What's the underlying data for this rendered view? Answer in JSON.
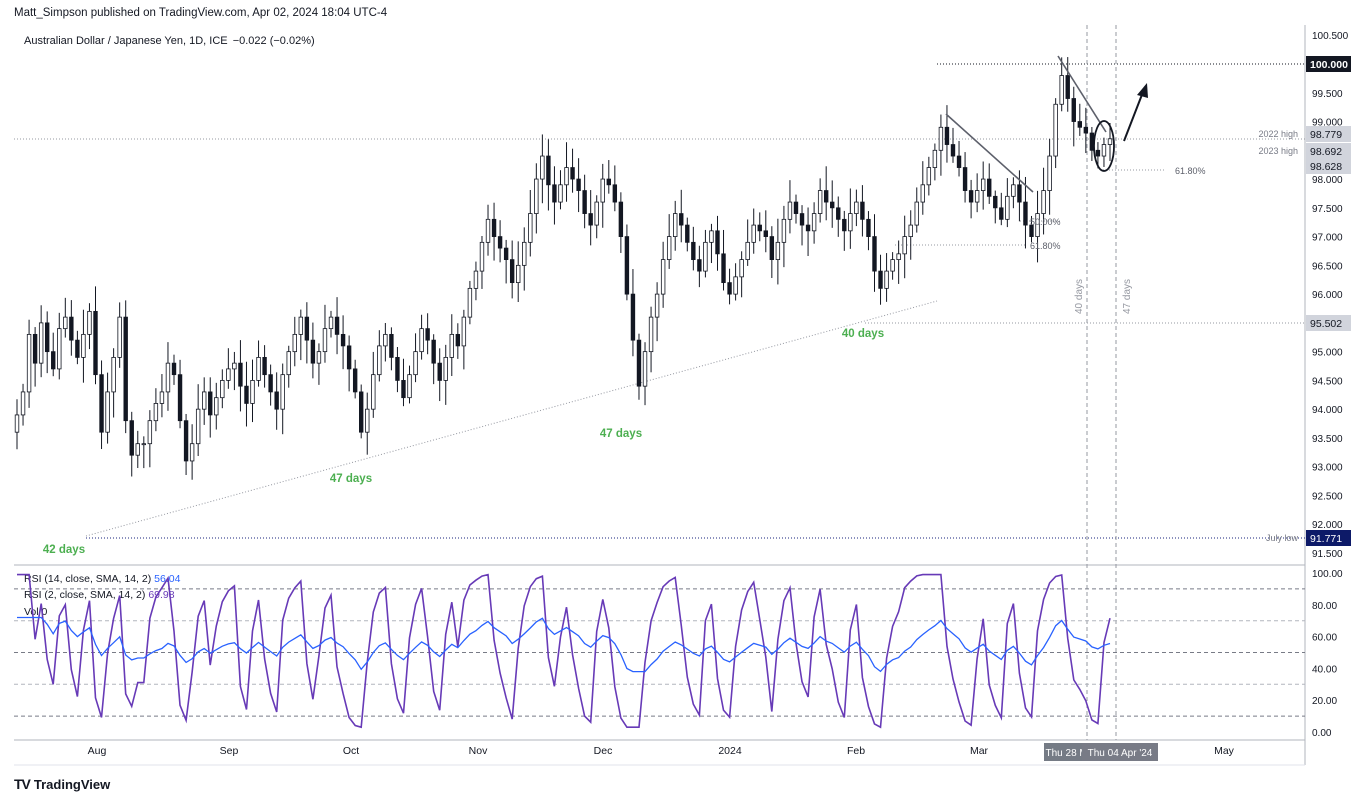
{
  "header": {
    "publisher": "Matt_Simpson published on TradingView.com, Apr 02, 2024 18:04 UTC-4"
  },
  "legend": {
    "symbol": "Australian Dollar / Japanese Yen, 1D, ICE",
    "change": "−0.022 (−0.02%)"
  },
  "rsi_panel": {
    "rsi1_label": "RSI (14, close, SMA, 14, 2)",
    "rsi1_value": "56.04",
    "rsi2_label": "RSI (2, close, SMA, 14, 2)",
    "rsi2_value": "69.98",
    "vol_label": "Vol",
    "vol_value": "0"
  },
  "footer": {
    "brand": "TradingView",
    "logo": "TV"
  },
  "colors": {
    "up": "#131722",
    "down": "#131722",
    "rsi14": "#2962ff",
    "rsi2": "#673ab7",
    "label_green": "#4caf50",
    "price_tag": "#131722",
    "navy_tag": "#0d1a68",
    "gray_tag": "#757b85"
  },
  "chart_data": {
    "type": "candlestick",
    "symbol": "Australian Dollar / Japanese Yen, 1D, ICE",
    "price_axis": {
      "min": 91.5,
      "max": 100.5,
      "ticks": [
        "91.500",
        "92.000",
        "92.500",
        "93.000",
        "93.500",
        "94.000",
        "94.500",
        "95.000",
        "95.500",
        "96.000",
        "96.500",
        "97.000",
        "97.500",
        "98.000",
        "98.500",
        "99.000",
        "99.500",
        "100.000",
        "100.500"
      ]
    },
    "x_axis": {
      "labels": [
        "Aug",
        "Sep",
        "Oct",
        "Nov",
        "Dec",
        "2024",
        "Feb",
        "Mar",
        "Apr",
        "May"
      ],
      "cursor_labels": [
        "Thu 28 Mar '24",
        "Thu 04 Apr '24"
      ]
    },
    "price_tags": [
      {
        "value": "100.000",
        "label": ""
      },
      {
        "value": "98.779",
        "label": "2022 high"
      },
      {
        "value": "98.692",
        "label": "2023 high"
      },
      {
        "value": "98.628",
        "label": ""
      },
      {
        "value": "95.502",
        "label": ""
      },
      {
        "value": "91.771",
        "label": "July low"
      }
    ],
    "fib_labels": {
      "fib_high": "61.80%",
      "fib_mid50": "50.00%",
      "fib_mid618": "61.80%"
    },
    "cycle_labels": [
      "42 days",
      "47 days",
      "47 days",
      "40 days"
    ],
    "vertical_labels": [
      "40 days",
      "47 days"
    ],
    "closes": [
      93.9,
      94.3,
      95.3,
      94.8,
      95.5,
      95.0,
      94.7,
      95.4,
      95.6,
      95.2,
      94.9,
      95.3,
      95.7,
      94.6,
      93.6,
      94.3,
      94.9,
      95.6,
      93.8,
      93.2,
      93.4,
      93.4,
      93.8,
      94.1,
      94.3,
      94.8,
      94.6,
      93.8,
      93.1,
      93.4,
      94.0,
      94.3,
      93.9,
      94.2,
      94.5,
      94.7,
      94.8,
      94.4,
      94.1,
      94.5,
      94.9,
      94.6,
      94.3,
      94.0,
      94.6,
      95.0,
      95.3,
      95.6,
      95.2,
      94.8,
      95.0,
      95.4,
      95.6,
      95.3,
      95.1,
      94.7,
      94.3,
      93.6,
      94.0,
      94.6,
      95.1,
      95.3,
      94.9,
      94.5,
      94.2,
      94.6,
      95.0,
      95.4,
      95.2,
      94.8,
      94.5,
      94.9,
      95.3,
      95.1,
      95.6,
      96.1,
      96.4,
      96.9,
      97.3,
      97.0,
      96.8,
      96.6,
      96.2,
      96.5,
      96.9,
      97.4,
      98.0,
      98.4,
      97.9,
      97.6,
      97.9,
      98.2,
      98.0,
      97.8,
      97.4,
      97.2,
      97.6,
      98.0,
      97.9,
      97.6,
      97.0,
      96.0,
      95.2,
      94.4,
      95.0,
      95.6,
      96.0,
      96.6,
      97.0,
      97.4,
      97.2,
      96.9,
      96.6,
      96.4,
      96.9,
      97.1,
      96.7,
      96.2,
      96.0,
      96.3,
      96.6,
      96.9,
      97.2,
      97.1,
      97.0,
      96.6,
      96.9,
      97.3,
      97.6,
      97.4,
      97.2,
      97.1,
      97.4,
      97.8,
      97.6,
      97.5,
      97.3,
      97.1,
      97.4,
      97.6,
      97.3,
      97.0,
      96.4,
      96.1,
      96.4,
      96.6,
      96.7,
      97.0,
      97.2,
      97.6,
      97.9,
      98.2,
      98.5,
      98.9,
      98.6,
      98.4,
      98.2,
      97.8,
      97.6,
      97.8,
      98.0,
      97.7,
      97.5,
      97.3,
      97.7,
      97.9,
      97.6,
      97.2,
      97.0,
      97.4,
      97.8,
      98.4,
      99.3,
      99.8,
      99.4,
      99.0,
      98.9,
      98.8,
      98.5,
      98.4,
      98.6,
      98.7
    ]
  }
}
